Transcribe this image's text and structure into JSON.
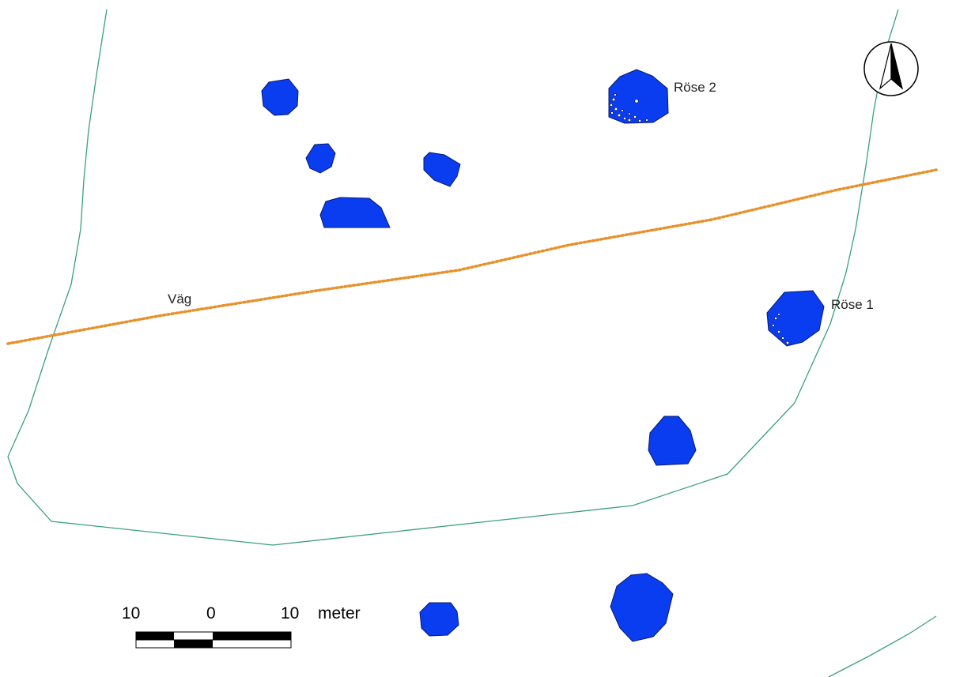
{
  "labels": {
    "road": "Väg",
    "cairn_1": "Röse 1",
    "cairn_2": "Röse 2"
  },
  "scale_bar": {
    "left_value": "10",
    "middle_value": "0",
    "right_value": "10",
    "unit": "meter"
  },
  "north_arrow": {
    "icon": "north-arrow-icon"
  },
  "colors": {
    "feature_fill": "#0a3cf0",
    "feature_stroke": "#0a1a6a",
    "boundary_line": "#3aa080",
    "road_line": "#e8902a",
    "background": "#ffffff"
  }
}
